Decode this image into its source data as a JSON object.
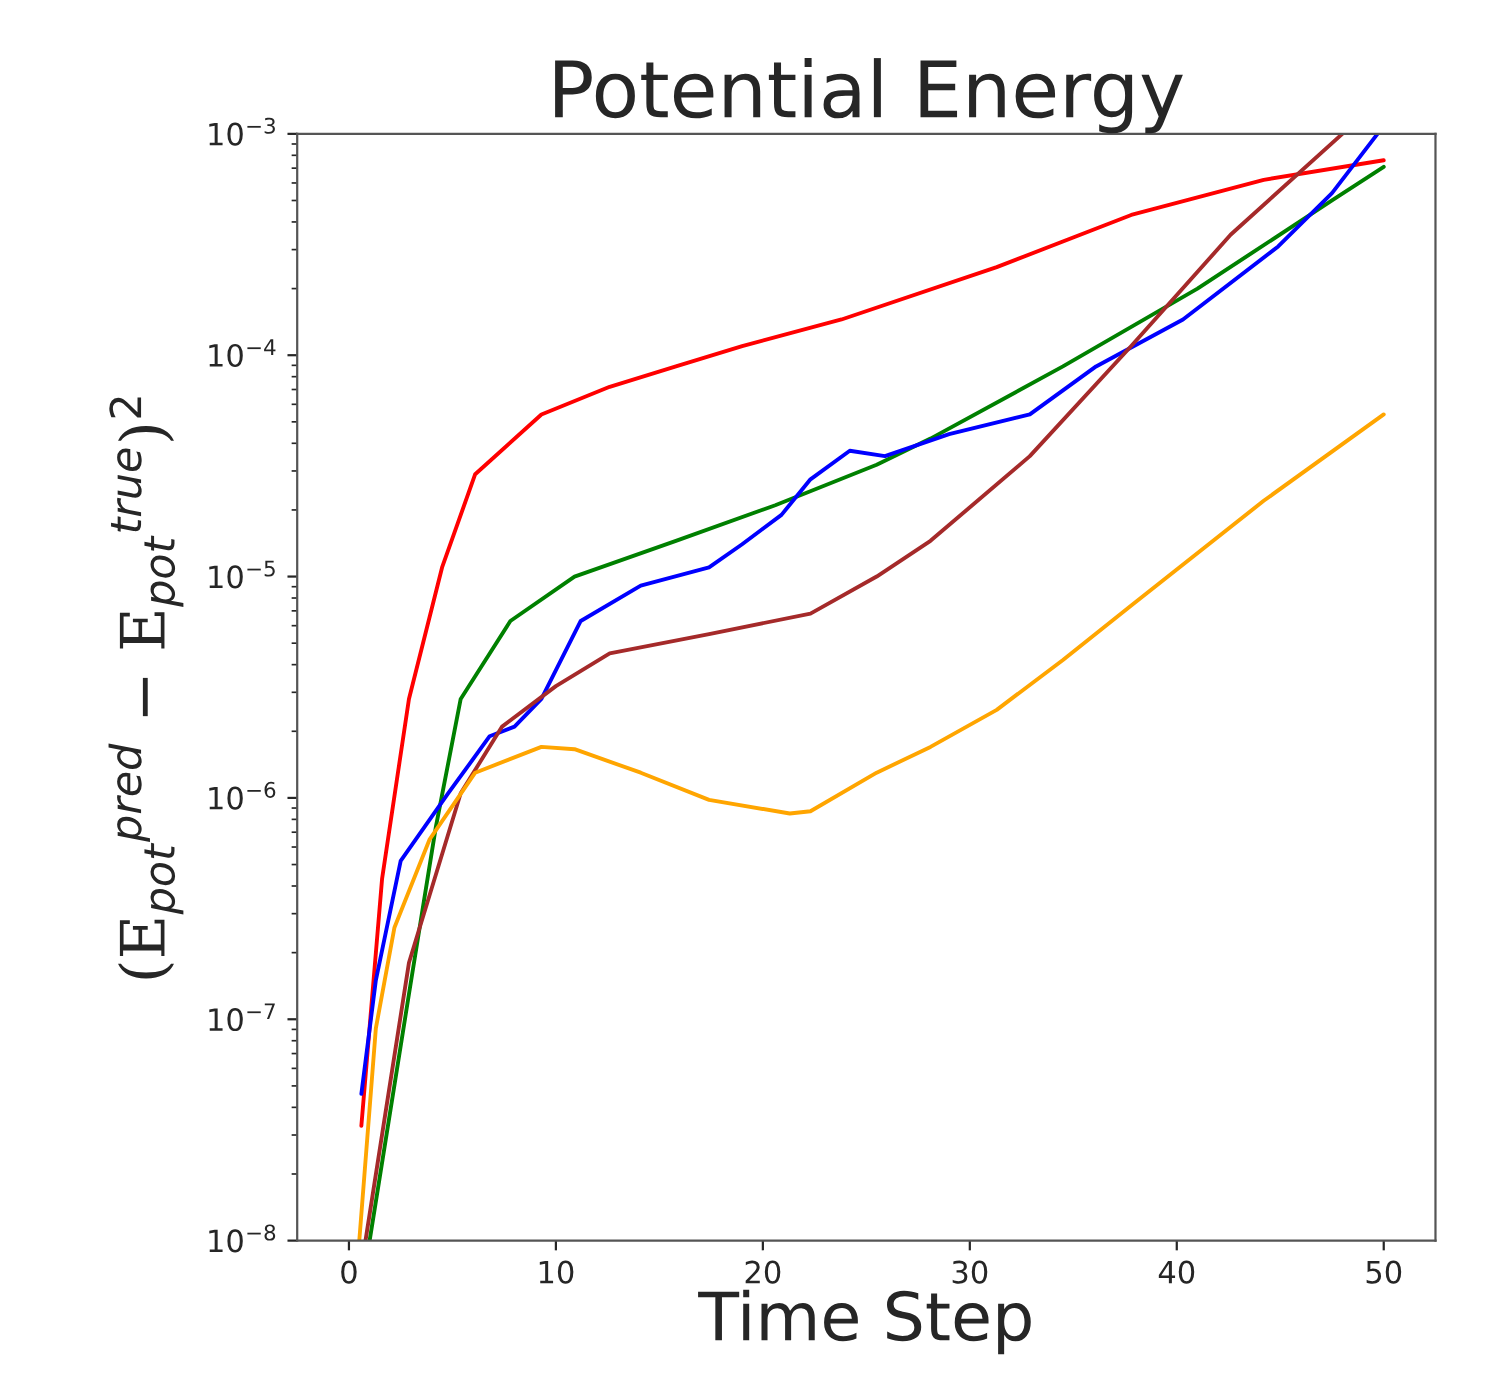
{
  "chart_data": {
    "type": "line",
    "title": "Potential Energy",
    "xlabel": "Time Step",
    "ylabel": "(E$_{pot}$$^{pred}$ − E$_{pot}$$^{true}$)$^{2}$",
    "log": "y",
    "xlim": [
      -2.5,
      52.5
    ],
    "xticks": [
      0,
      10,
      20,
      30,
      40,
      50
    ],
    "ylim": [
      1e-08,
      0.001
    ],
    "yticks": [
      {
        "value": 1e-08,
        "label": "10$^{−8}$"
      },
      {
        "value": 1e-07,
        "label": "10$^{−7}$"
      },
      {
        "value": 1e-06,
        "label": "10$^{−6}$"
      },
      {
        "value": 1e-05,
        "label": "10$^{−5}$"
      },
      {
        "value": 0.0001,
        "label": "10$^{−4}$"
      },
      {
        "value": 0.001,
        "label": "10$^{−3}$"
      }
    ],
    "series": [
      {
        "color": "#ff0000",
        "x": [
          0.6,
          1.6,
          2.9,
          4.5,
          6.1,
          9.3,
          12.6,
          15.8,
          19,
          23.8,
          31.3,
          37.8,
          44.2,
          50
        ],
        "values": [
          3.3e-08,
          4.3e-07,
          2.8e-06,
          1.1e-05,
          2.9e-05,
          5.4e-05,
          7.2e-05,
          8.9e-05,
          0.00011,
          0.000145,
          0.00025,
          0.00043,
          0.00062,
          0.00076
        ]
      },
      {
        "color": "#008000",
        "x": [
          1,
          2.9,
          4.2,
          5.4,
          7.8,
          10.9,
          15.8,
          20.6,
          25.5,
          28.1,
          34.5,
          41,
          47.5,
          50
        ],
        "values": [
          1e-08,
          1.3e-07,
          7.4e-07,
          2.8e-06,
          6.3e-06,
          1e-05,
          1.45e-05,
          2.1e-05,
          3.2e-05,
          4.2e-05,
          8.9e-05,
          0.0002,
          0.0005,
          0.00071
        ]
      },
      {
        "color": "#0000ff",
        "x": [
          0.6,
          1.3,
          2.5,
          4.8,
          6.8,
          8,
          9.3,
          11.2,
          14.1,
          17.4,
          19,
          20.9,
          22.3,
          24.2,
          25.9,
          29,
          32.9,
          36.1,
          40.3,
          44.9,
          47.5,
          49.7
        ],
        "values": [
          4.6e-08,
          1.5e-07,
          5.2e-07,
          1.05e-06,
          1.9e-06,
          2.1e-06,
          2.8e-06,
          6.3e-06,
          9.1e-06,
          1.1e-05,
          1.4e-05,
          1.9e-05,
          2.75e-05,
          3.7e-05,
          3.5e-05,
          4.4e-05,
          5.4e-05,
          8.9e-05,
          0.000145,
          0.00031,
          0.00054,
          0.001
        ]
      },
      {
        "color": "#a52a2a",
        "x": [
          0.8,
          2.9,
          5.4,
          7.4,
          10,
          12.6,
          17.4,
          22.3,
          25.5,
          28.1,
          32.9,
          37.8,
          42.6,
          48
        ],
        "values": [
          1e-08,
          1.8e-07,
          1.05e-06,
          2.1e-06,
          3.2e-06,
          4.5e-06,
          5.5e-06,
          6.8e-06,
          1e-05,
          1.45e-05,
          3.5e-05,
          0.00011,
          0.00035,
          0.001
        ]
      },
      {
        "color": "#ffa500",
        "x": [
          0.5,
          1.3,
          2.2,
          3.9,
          6.1,
          9.3,
          10.9,
          14.1,
          17.4,
          21.3,
          22.3,
          25.5,
          28.1,
          31.3,
          34.5,
          37.8,
          44.2,
          50
        ],
        "values": [
          1e-08,
          9.1e-08,
          2.6e-07,
          6.5e-07,
          1.3e-06,
          1.7e-06,
          1.66e-06,
          1.3e-06,
          9.8e-07,
          8.5e-07,
          8.7e-07,
          1.3e-06,
          1.7e-06,
          2.5e-06,
          4.2e-06,
          7.4e-06,
          2.2e-05,
          5.4e-05
        ]
      }
    ]
  }
}
